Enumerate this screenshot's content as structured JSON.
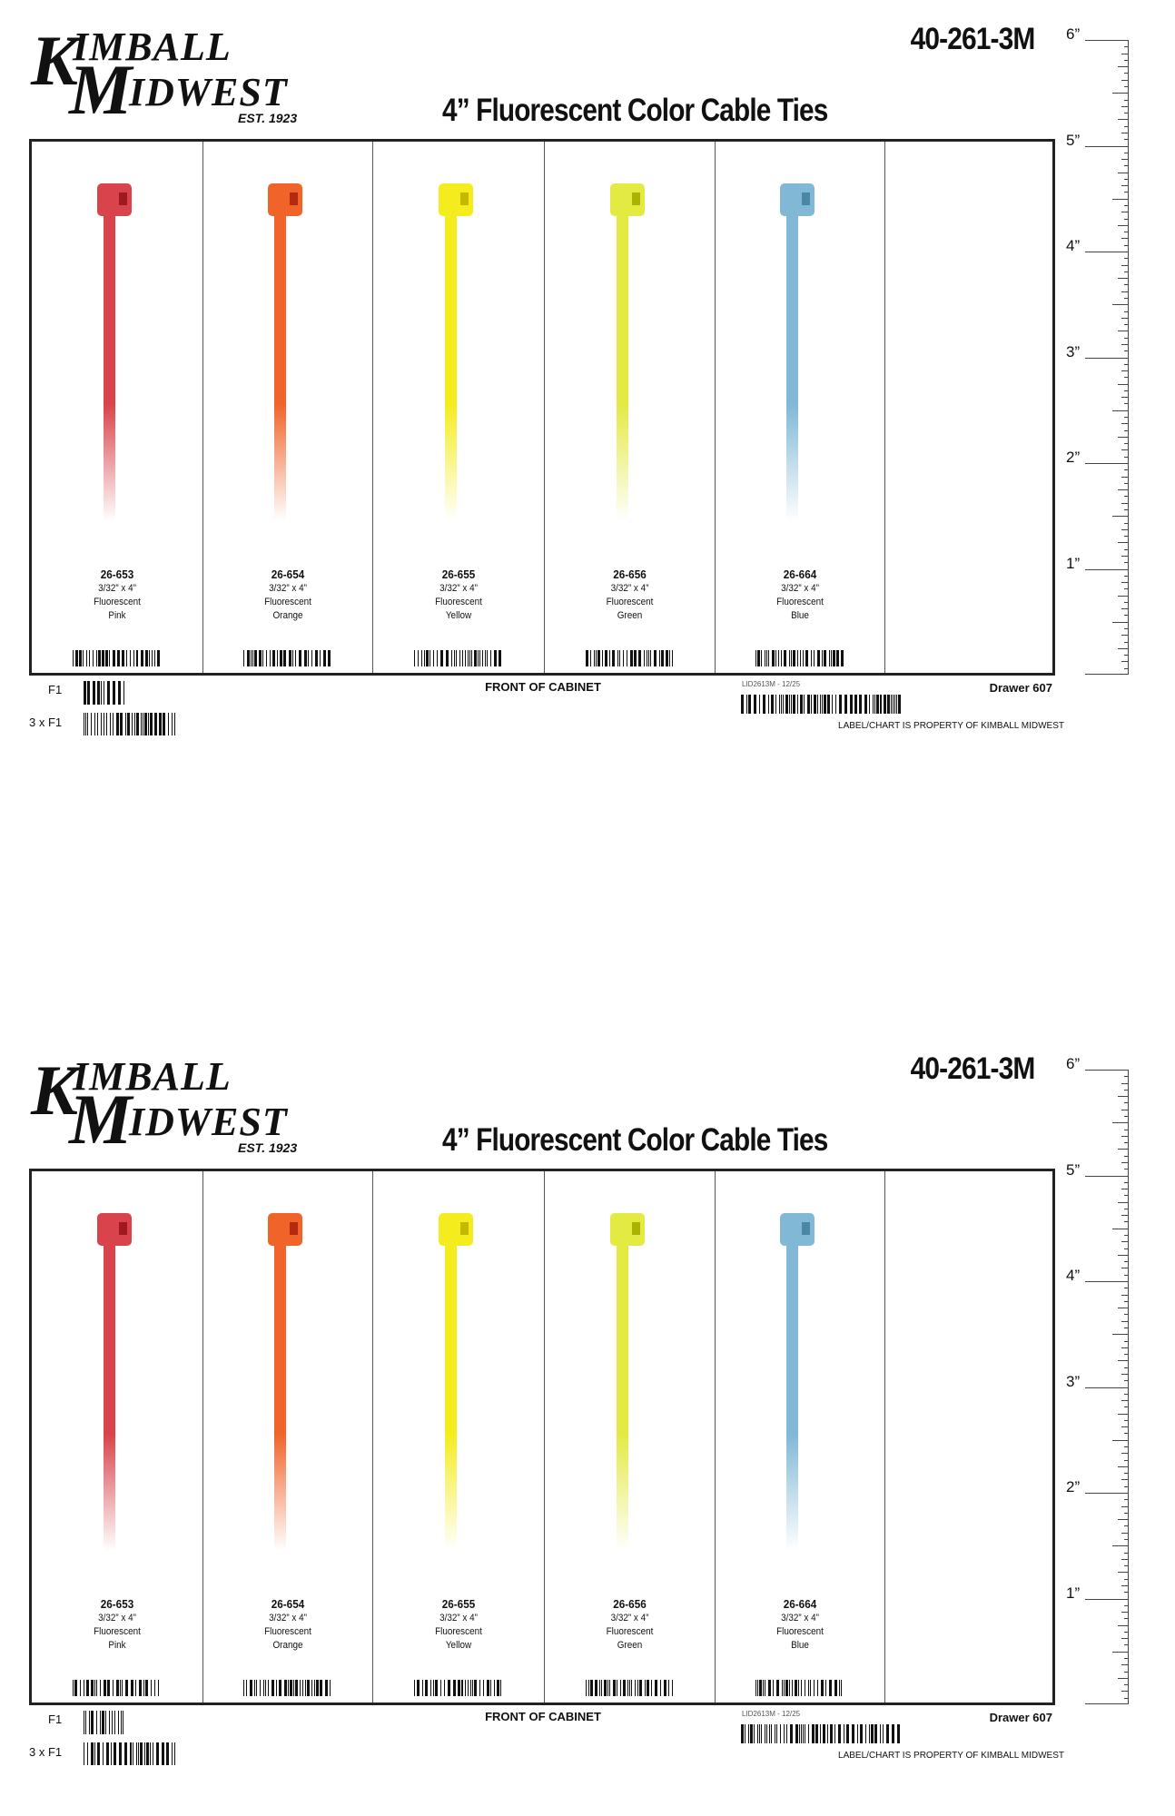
{
  "brand": {
    "logo_text": "KIMBALL MIDWEST",
    "k": "K",
    "imball": "IMBALL",
    "m": "M",
    "idwest": "IDWEST",
    "est": "EST. 1923"
  },
  "header": {
    "part_number": "40-261-3M",
    "title": "4” Fluorescent Color Cable Ties"
  },
  "products": [
    {
      "sku": "26-653",
      "size": "3/32” x 4”",
      "type": "Fluorescent",
      "color_name": "Pink",
      "color": "#d9434b",
      "slot": "#a01820"
    },
    {
      "sku": "26-654",
      "size": "3/32” x 4”",
      "type": "Fluorescent",
      "color_name": "Orange",
      "color": "#f0642a",
      "slot": "#b42a10"
    },
    {
      "sku": "26-655",
      "size": "3/32” x 4”",
      "type": "Fluorescent",
      "color_name": "Yellow",
      "color": "#f5ec1e",
      "slot": "#c4b800"
    },
    {
      "sku": "26-656",
      "size": "3/32” x 4”",
      "type": "Fluorescent",
      "color_name": "Green",
      "color": "#e3ea42",
      "slot": "#aab400"
    },
    {
      "sku": "26-664",
      "size": "3/32” x 4”",
      "type": "Fluorescent",
      "color_name": "Blue",
      "color": "#80b8d6",
      "slot": "#4a86a6"
    }
  ],
  "ruler": {
    "labels": [
      "6”",
      "5”",
      "4”",
      "3”",
      "2”",
      "1”"
    ]
  },
  "footer": {
    "f1": "F1",
    "f1x3": "3 x F1",
    "front": "FRONT OF CABINET",
    "lid": "LID2613M - 12/25",
    "drawer": "Drawer 607",
    "property": "LABEL/CHART IS PROPERTY OF KIMBALL MIDWEST"
  }
}
